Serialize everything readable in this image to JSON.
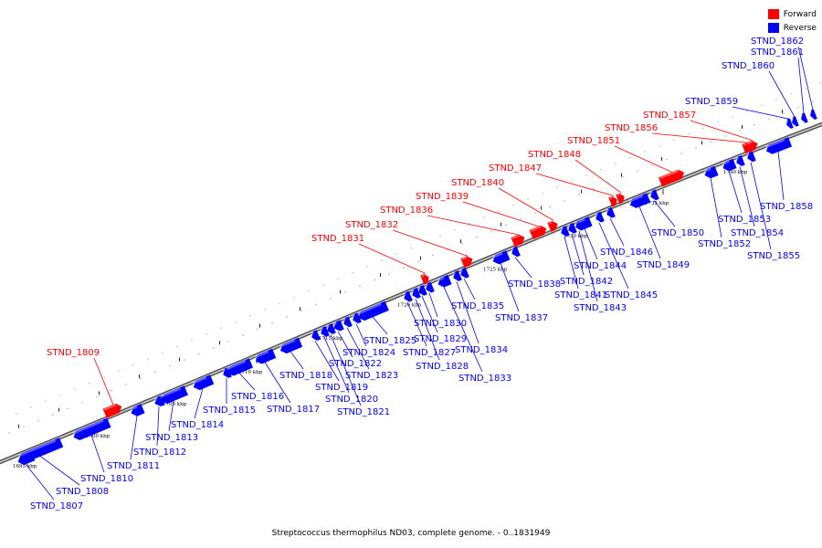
{
  "legend": [
    {
      "label": "Forward",
      "color": "#ff0000"
    },
    {
      "label": "Reverse",
      "color": "#0000ff"
    }
  ],
  "caption": "Streptococcus thermophilus ND03, complete genome. - 0..1831949",
  "ticks": [
    "1695 kbp",
    "1700 kbp",
    "1705 kbp",
    "1710 kbp",
    "1715 kbp",
    "1720 kbp",
    "1725 kbp",
    "1730 kbp",
    "1735 kbp",
    "1740 kbp"
  ],
  "genes": [
    {
      "id": "STND_1807",
      "strand": "reverse"
    },
    {
      "id": "STND_1808",
      "strand": "reverse"
    },
    {
      "id": "STND_1809",
      "strand": "forward"
    },
    {
      "id": "STND_1810",
      "strand": "reverse"
    },
    {
      "id": "STND_1811",
      "strand": "reverse"
    },
    {
      "id": "STND_1812",
      "strand": "reverse"
    },
    {
      "id": "STND_1813",
      "strand": "reverse"
    },
    {
      "id": "STND_1814",
      "strand": "reverse"
    },
    {
      "id": "STND_1815",
      "strand": "reverse"
    },
    {
      "id": "STND_1816",
      "strand": "reverse"
    },
    {
      "id": "STND_1817",
      "strand": "reverse"
    },
    {
      "id": "STND_1818",
      "strand": "reverse"
    },
    {
      "id": "STND_1819",
      "strand": "reverse"
    },
    {
      "id": "STND_1820",
      "strand": "reverse"
    },
    {
      "id": "STND_1821",
      "strand": "reverse"
    },
    {
      "id": "STND_1822",
      "strand": "reverse"
    },
    {
      "id": "STND_1823",
      "strand": "reverse"
    },
    {
      "id": "STND_1824",
      "strand": "reverse"
    },
    {
      "id": "STND_1825",
      "strand": "reverse"
    },
    {
      "id": "STND_1827",
      "strand": "reverse"
    },
    {
      "id": "STND_1828",
      "strand": "reverse"
    },
    {
      "id": "STND_1829",
      "strand": "reverse"
    },
    {
      "id": "STND_1830",
      "strand": "reverse"
    },
    {
      "id": "STND_1831",
      "strand": "forward"
    },
    {
      "id": "STND_1832",
      "strand": "forward"
    },
    {
      "id": "STND_1833",
      "strand": "reverse"
    },
    {
      "id": "STND_1834",
      "strand": "reverse"
    },
    {
      "id": "STND_1835",
      "strand": "reverse"
    },
    {
      "id": "STND_1836",
      "strand": "forward"
    },
    {
      "id": "STND_1837",
      "strand": "reverse"
    },
    {
      "id": "STND_1838",
      "strand": "reverse"
    },
    {
      "id": "STND_1839",
      "strand": "forward"
    },
    {
      "id": "STND_1840",
      "strand": "forward"
    },
    {
      "id": "STND_1841",
      "strand": "reverse"
    },
    {
      "id": "STND_1842",
      "strand": "reverse"
    },
    {
      "id": "STND_1843",
      "strand": "reverse"
    },
    {
      "id": "STND_1844",
      "strand": "reverse"
    },
    {
      "id": "STND_1845",
      "strand": "reverse"
    },
    {
      "id": "STND_1846",
      "strand": "reverse"
    },
    {
      "id": "STND_1847",
      "strand": "forward"
    },
    {
      "id": "STND_1848",
      "strand": "forward"
    },
    {
      "id": "STND_1849",
      "strand": "reverse"
    },
    {
      "id": "STND_1850",
      "strand": "reverse"
    },
    {
      "id": "STND_1851",
      "strand": "forward"
    },
    {
      "id": "STND_1852",
      "strand": "reverse"
    },
    {
      "id": "STND_1853",
      "strand": "reverse"
    },
    {
      "id": "STND_1854",
      "strand": "reverse"
    },
    {
      "id": "STND_1855",
      "strand": "reverse"
    },
    {
      "id": "STND_1856",
      "strand": "forward"
    },
    {
      "id": "STND_1857",
      "strand": "forward"
    },
    {
      "id": "STND_1858",
      "strand": "reverse"
    },
    {
      "id": "STND_1859",
      "strand": "reverse"
    },
    {
      "id": "STND_1860",
      "strand": "reverse"
    },
    {
      "id": "STND_1861",
      "strand": "reverse"
    },
    {
      "id": "STND_1862",
      "strand": "reverse"
    }
  ]
}
